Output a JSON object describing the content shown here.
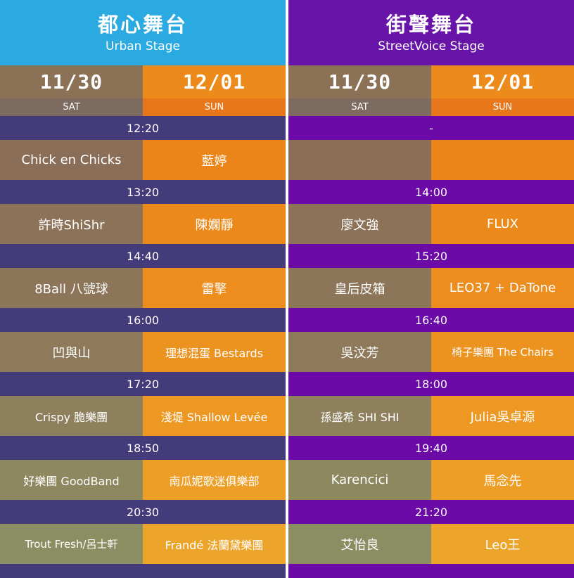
{
  "colors": {
    "urban_header": "#2ba9e1",
    "urban_band": "#443c7a",
    "street_header": "#6914a8",
    "street_band": "#6b0aa6",
    "sat_col": "#8b7256",
    "sun_col": "#ec8a1c",
    "sat_day": "#7e6b60",
    "sun_day": "#e8761a"
  },
  "stages": [
    {
      "name_zh": "都心舞台",
      "name_en": "Urban Stage",
      "dates": [
        {
          "date": "11/30",
          "day": "SAT"
        },
        {
          "date": "12/01",
          "day": "SUN"
        }
      ],
      "slots": [
        {
          "time": "12:20",
          "sat": "Chick en Chicks",
          "sun": "藍婷"
        },
        {
          "time": "13:20",
          "sat": "許時ShiShr",
          "sun": "陳嫻靜"
        },
        {
          "time": "14:40",
          "sat": "8Ball 八號球",
          "sun": "雷擎"
        },
        {
          "time": "16:00",
          "sat": "凹與山",
          "sun": "理想混蛋 Bestards"
        },
        {
          "time": "17:20",
          "sat": "Crispy 脆樂團",
          "sun": "淺堤 Shallow Levée"
        },
        {
          "time": "18:50",
          "sat": "好樂團 GoodBand",
          "sun": "南瓜妮歌迷俱樂部"
        },
        {
          "time": "20:30",
          "sat": "Trout Fresh/呂士軒",
          "sun": "Frandé 法蘭黛樂團"
        }
      ]
    },
    {
      "name_zh": "街聲舞台",
      "name_en": "StreetVoice Stage",
      "dates": [
        {
          "date": "11/30",
          "day": "SAT"
        },
        {
          "date": "12/01",
          "day": "SUN"
        }
      ],
      "slots": [
        {
          "time": "-",
          "sat": "",
          "sun": ""
        },
        {
          "time": "14:00",
          "sat": "廖文強",
          "sun": "FLUX"
        },
        {
          "time": "15:20",
          "sat": "皇后皮箱",
          "sun": "LEO37 + DaTone"
        },
        {
          "time": "16:40",
          "sat": "吳汶芳",
          "sun": "椅子樂團 The Chairs"
        },
        {
          "time": "18:00",
          "sat": "孫盛希 SHI SHI",
          "sun": "Julia吳卓源"
        },
        {
          "time": "19:40",
          "sat": "Karencici",
          "sun": "馬念先"
        },
        {
          "time": "21:20",
          "sat": "艾怡良",
          "sun": "Leo王"
        }
      ]
    }
  ]
}
